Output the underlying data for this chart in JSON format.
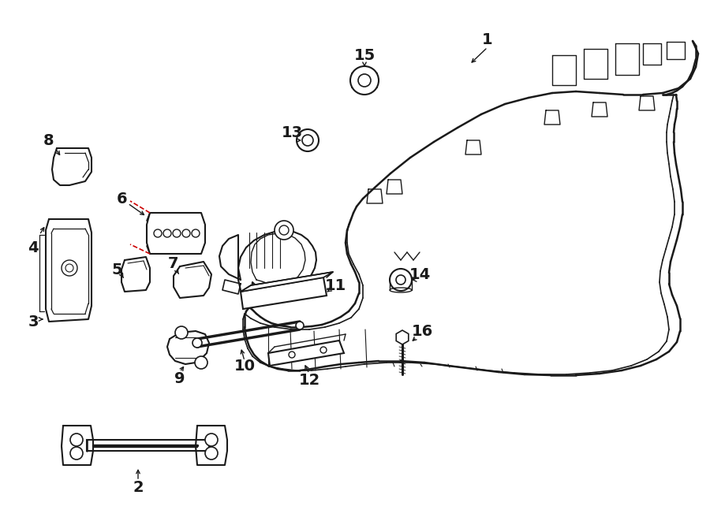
{
  "bg_color": "#ffffff",
  "line_color": "#1a1a1a",
  "red_dash_color": "#cc0000",
  "figsize": [
    9.0,
    6.61
  ],
  "dpi": 100
}
